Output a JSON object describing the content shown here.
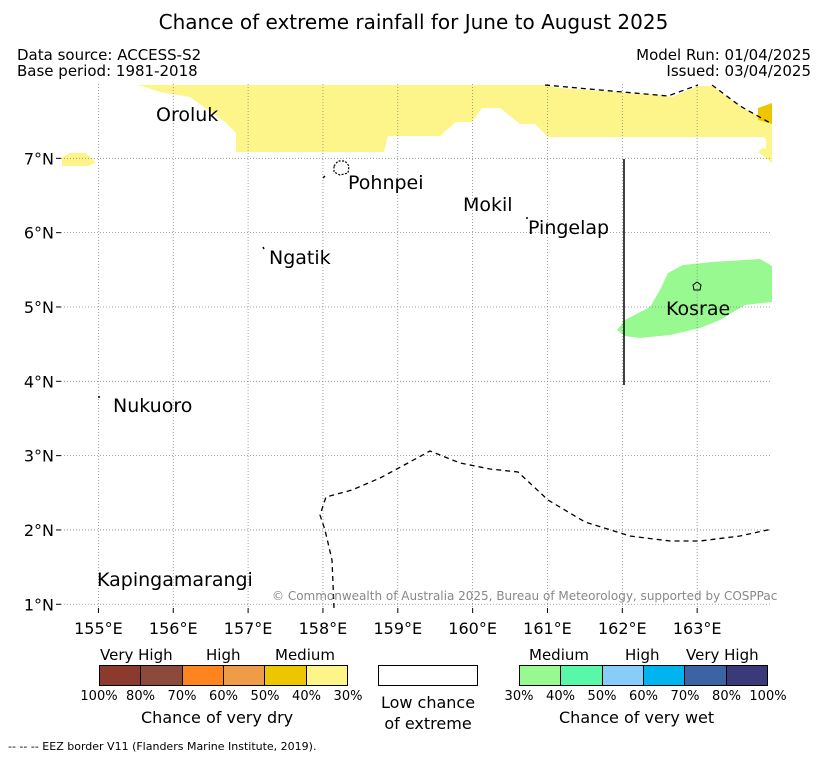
{
  "title": "Chance of extreme rainfall for June to August 2025",
  "data_source": "Data source: ACCESS-S2",
  "base_period": "Base period: 1981-2018",
  "model_run": "Model Run: 01/04/2025",
  "issued": "Issued: 03/04/2025",
  "axes": {
    "lon_ticks": [
      "155°E",
      "156°E",
      "157°E",
      "158°E",
      "159°E",
      "160°E",
      "161°E",
      "162°E",
      "163°E"
    ],
    "lat_ticks": [
      "7°N",
      "6°N",
      "5°N",
      "4°N",
      "3°N",
      "2°N",
      "1°N"
    ],
    "lon_range": [
      154.5,
      164.0
    ],
    "lat_range": [
      0.95,
      8.0
    ]
  },
  "places": {
    "oroluk": "Oroluk",
    "pohnpei": "Pohnpei",
    "mokil": "Mokil",
    "pingelap": "Pingelap",
    "ngatik": "Ngatik",
    "kosrae": "Kosrae",
    "nukuoro": "Nukuoro",
    "kapingamarangi": "Kapingamarangi"
  },
  "copyright": "© Commonwealth of Australia 2025, Bureau of Meteorology, supported by COSPPac",
  "legend": {
    "dry": {
      "categories": [
        "Very High",
        "High",
        "Medium"
      ],
      "colors": [
        "#8b3a2e",
        "#8b4a3a",
        "#ff8420",
        "#ef9c48",
        "#eec600",
        "#fdf58a"
      ],
      "pcts": [
        "100%",
        "80%",
        "70%",
        "60%",
        "50%",
        "40%",
        "30%"
      ],
      "title": "Chance of very dry"
    },
    "low": {
      "line1": "Low chance",
      "line2": "of extreme"
    },
    "wet": {
      "categories": [
        "Medium",
        "High",
        "Very High"
      ],
      "colors": [
        "#98f990",
        "#58f8a8",
        "#88ccf8",
        "#00b4f0",
        "#3a64a4",
        "#3a3a7a"
      ],
      "pcts": [
        "30%",
        "40%",
        "50%",
        "60%",
        "70%",
        "80%",
        "100%"
      ],
      "title": "Chance of very wet"
    }
  },
  "eez_note": "--  --  -- EEZ border V11 (Flanders Marine Institute, 2019)."
}
